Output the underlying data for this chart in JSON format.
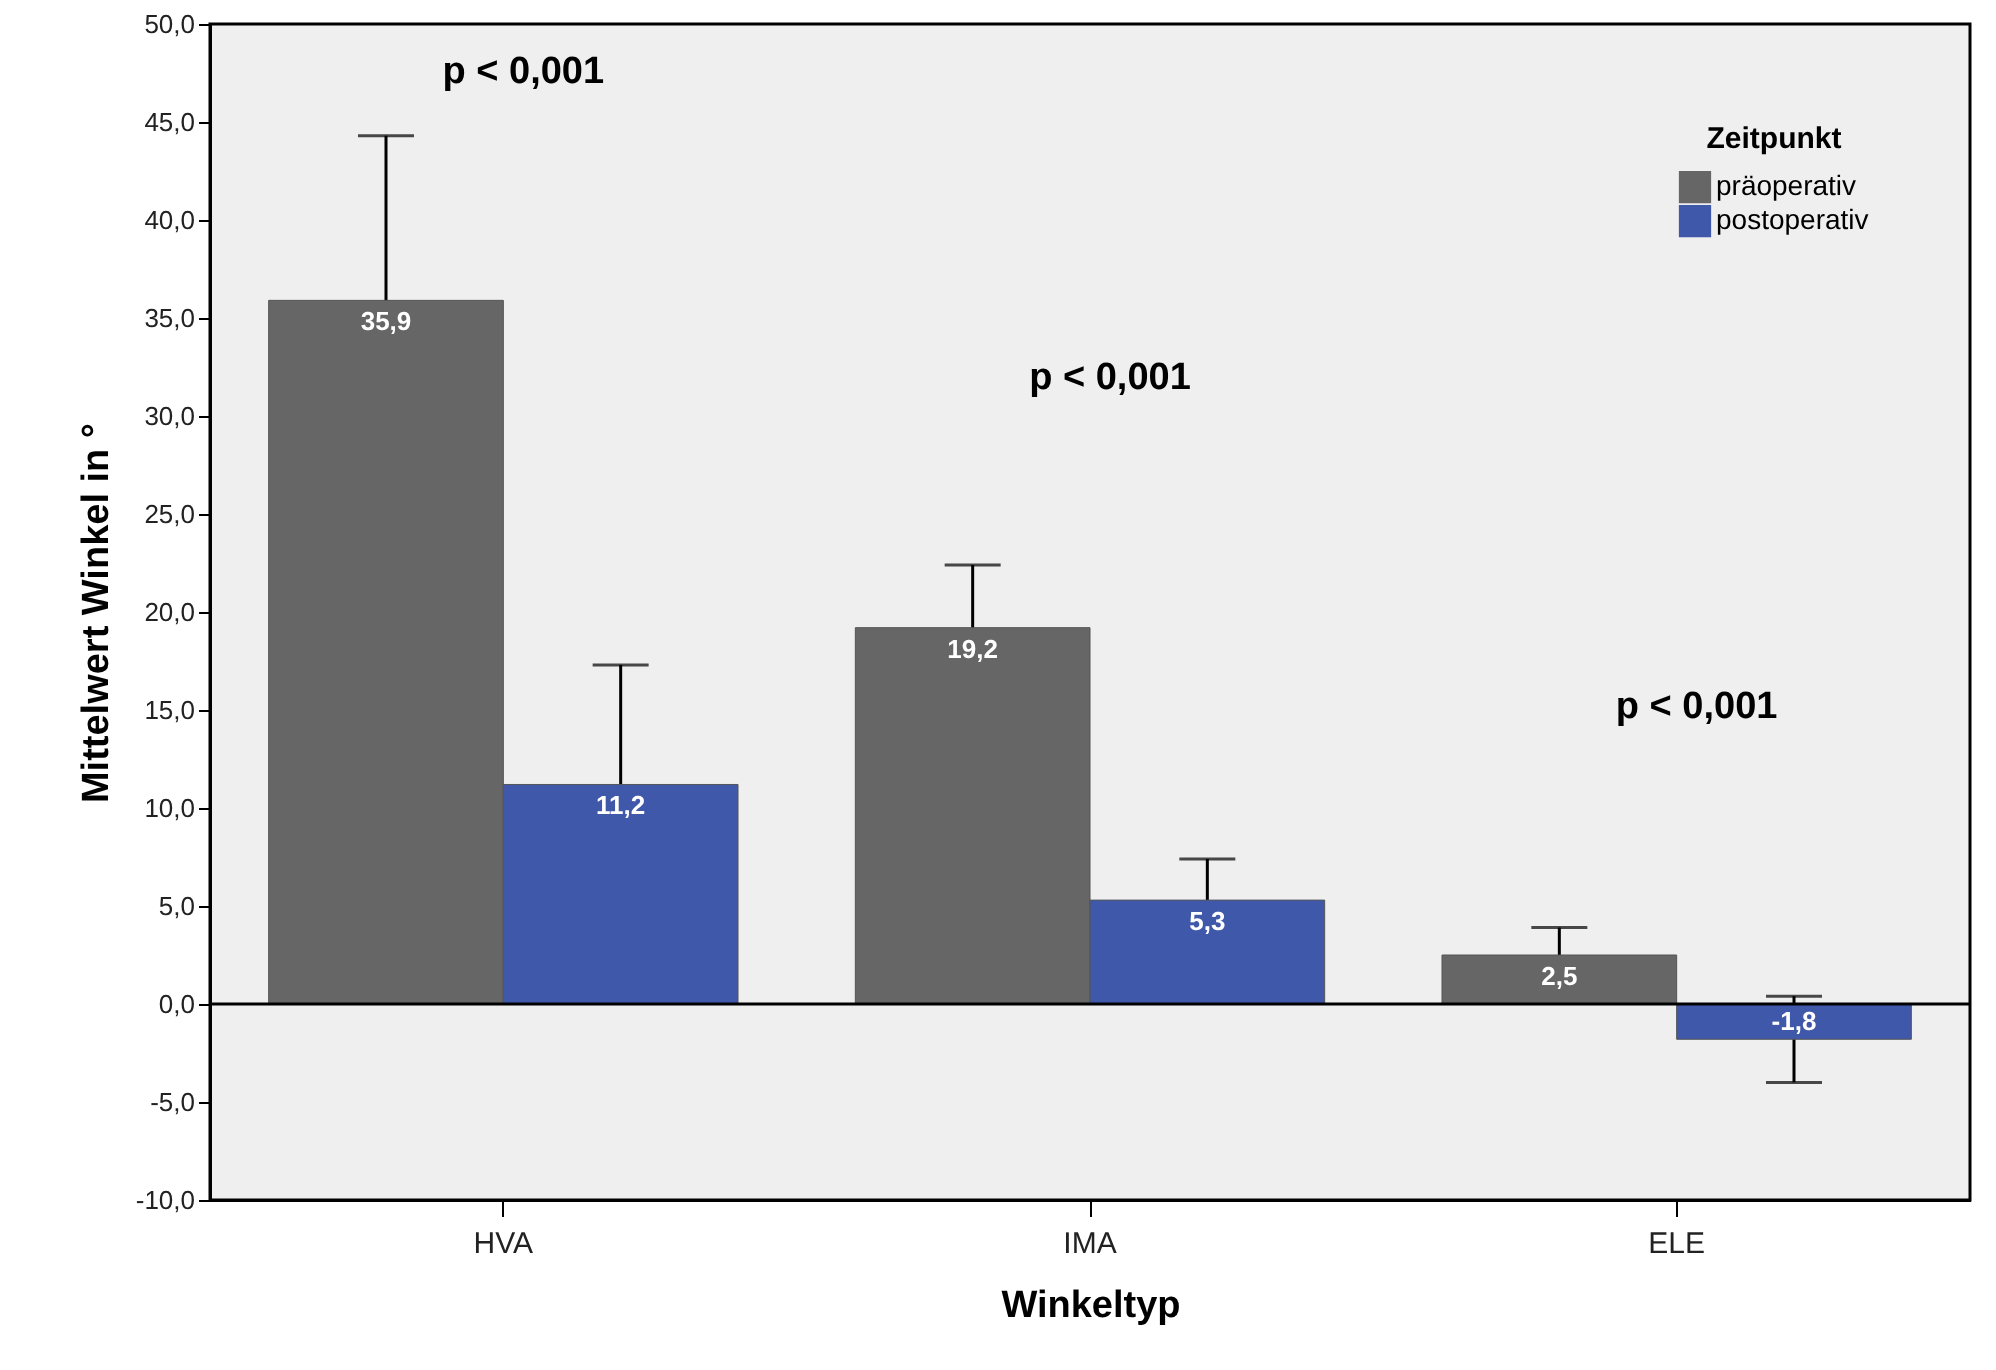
{
  "chart_data": {
    "type": "bar",
    "xlabel": "Winkeltyp",
    "ylabel": "Mittelwert Winkel in °",
    "legend_title": "Zeitpunkt",
    "categories": [
      "HVA",
      "IMA",
      "ELE"
    ],
    "series": [
      {
        "name": "präoperativ",
        "color": "#666666",
        "values": [
          35.9,
          19.2,
          2.5
        ],
        "errors": [
          8.4,
          3.2,
          1.4
        ],
        "value_labels": [
          "35,9",
          "19,2",
          "2,5"
        ]
      },
      {
        "name": "postoperativ",
        "color": "#3f58aa",
        "values": [
          11.2,
          5.3,
          -1.8
        ],
        "errors": [
          6.1,
          2.1,
          2.2
        ],
        "value_labels": [
          "11,2",
          "5,3",
          "-1,8"
        ]
      }
    ],
    "ylim": [
      -10,
      50
    ],
    "yticks": [
      {
        "value": -10,
        "label": "-10,0"
      },
      {
        "value": -5,
        "label": "-5,0"
      },
      {
        "value": 0,
        "label": "0,0"
      },
      {
        "value": 5,
        "label": "5,0"
      },
      {
        "value": 10,
        "label": "10,0"
      },
      {
        "value": 15,
        "label": "15,0"
      },
      {
        "value": 20,
        "label": "20,0"
      },
      {
        "value": 25,
        "label": "25,0"
      },
      {
        "value": 30,
        "label": "30,0"
      },
      {
        "value": 35,
        "label": "35,0"
      },
      {
        "value": 40,
        "label": "40,0"
      },
      {
        "value": 45,
        "label": "45,0"
      },
      {
        "value": 50,
        "label": "50,0"
      }
    ],
    "ref_lines": [
      {
        "axis": "y",
        "value": 0,
        "color": "#000000"
      }
    ],
    "annotations": [
      "p < 0,001",
      "p < 0,001",
      "p < 0,001"
    ],
    "grid": false,
    "legend": "top right"
  }
}
